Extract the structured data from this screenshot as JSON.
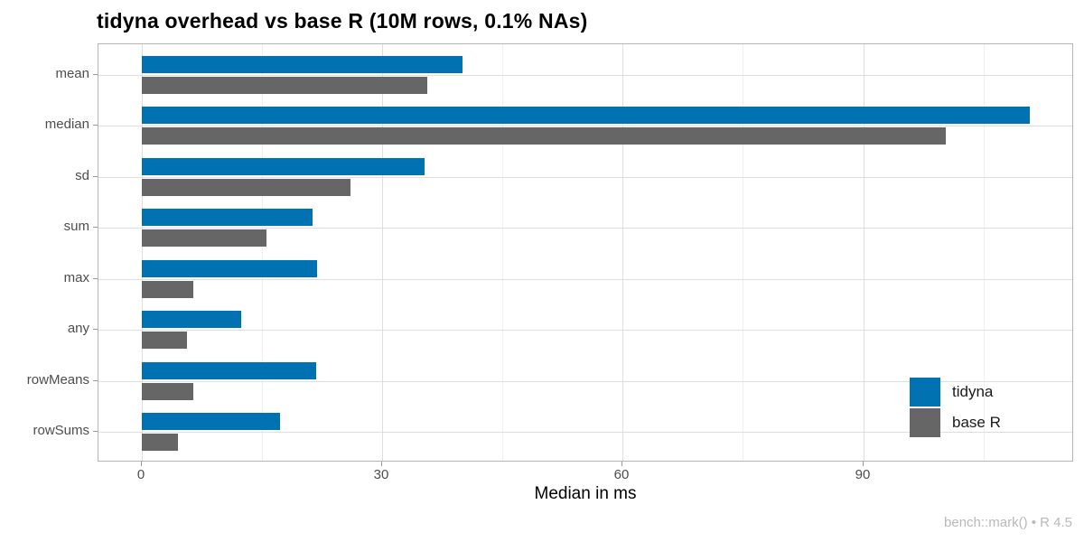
{
  "title": "tidyna overhead vs base R (10M rows, 0.1% NAs)",
  "caption": "bench::mark() • R 4.5",
  "chart_data": {
    "type": "bar",
    "orientation": "horizontal",
    "title": "tidyna overhead vs base R (10M rows, 0.1% NAs)",
    "xlabel": "Median in ms",
    "ylabel": "",
    "categories": [
      "mean",
      "median",
      "sd",
      "sum",
      "max",
      "any",
      "rowMeans",
      "rowSums"
    ],
    "series": [
      {
        "name": "tidyna",
        "color": "#0072B2",
        "values": [
          40.0,
          110.8,
          35.3,
          21.3,
          21.9,
          12.4,
          21.8,
          17.2
        ]
      },
      {
        "name": "base R",
        "color": "#666666",
        "values": [
          35.6,
          100.3,
          26.0,
          15.5,
          6.4,
          5.6,
          6.4,
          4.5
        ]
      }
    ],
    "x_ticks": [
      0,
      30,
      60,
      90
    ],
    "x_minor_ticks": [
      15,
      45,
      75,
      105
    ],
    "xlim": [
      -5.4,
      116.3
    ],
    "grid": true,
    "legend_position": "inside-bottom-right",
    "caption": "bench::mark() • R 4.5"
  },
  "colors": {
    "bar_blue": "#0072B2",
    "bar_gray": "#666666",
    "panel_border": "#b5b5b5",
    "grid_major": "#dedede",
    "grid_minor": "#efefef",
    "axis_text": "#4d4d4d",
    "caption_text": "#b9b9b9"
  }
}
